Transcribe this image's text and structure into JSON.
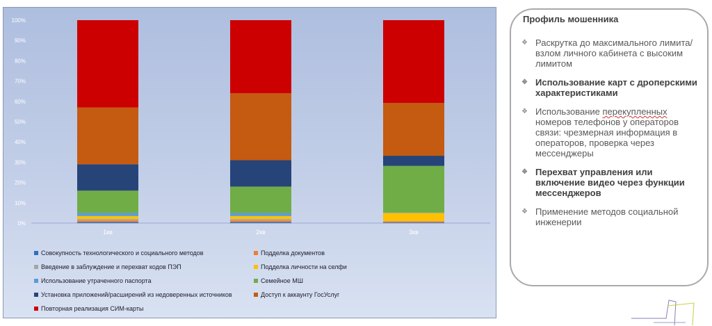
{
  "chart_data": {
    "type": "bar",
    "stacked": true,
    "categories": [
      "1кв",
      "2кв",
      "3кв"
    ],
    "ylim": [
      0,
      100
    ],
    "yticks": [
      "0%",
      "10%",
      "20%",
      "30%",
      "40%",
      "50%",
      "60%",
      "70%",
      "80%",
      "90%",
      "100%"
    ],
    "grid": false,
    "legend_position": "bottom",
    "series": [
      {
        "name": "Совокупность технологического и социального методов",
        "color": "#2e6fc0",
        "values": [
          0.5,
          0.5,
          0.3
        ]
      },
      {
        "name": "Подделка документов",
        "color": "#ee7d31",
        "values": [
          0.8,
          0.8,
          0.5
        ]
      },
      {
        "name": "Введение в заблуждение и перехват кодов ПЭП",
        "color": "#a5a5a5",
        "values": [
          0.7,
          0.7,
          0.2
        ]
      },
      {
        "name": "Подделка личности на селфи",
        "color": "#ffc000",
        "values": [
          1.5,
          1.5,
          4.0
        ]
      },
      {
        "name": "Использование утраченного паспорта",
        "color": "#5b9bd5",
        "values": [
          1.5,
          1.5,
          0.2
        ]
      },
      {
        "name": "Семейное МШ",
        "color": "#70ad47",
        "values": [
          11.0,
          13.0,
          23.0
        ]
      },
      {
        "name": "Установка приложений/расширений из недоверенных источников",
        "color": "#264478",
        "values": [
          13.0,
          13.0,
          5.0
        ]
      },
      {
        "name": "Доступ к аккаунту ГосУслуг",
        "color": "#c55a11",
        "values": [
          28.0,
          33.0,
          26.0
        ]
      },
      {
        "name": "Повторная реализация СИМ-карты",
        "color": "#cc0000",
        "values": [
          43.0,
          36.0,
          40.8
        ]
      }
    ]
  },
  "profile": {
    "title": "Профиль мошенника",
    "items": [
      {
        "text": "Раскрутка до максимального лимита/ взлом личного кабинета с высоким лимитом",
        "bold": false
      },
      {
        "text": "Использование карт с дроперскими характеристиками",
        "bold": true
      },
      {
        "text_parts": [
          "Использование ",
          "перекупленных",
          " номеров телефонов у операторов связи: чрезмерная информация в операторов, проверка через мессенджеры"
        ],
        "bold": false
      },
      {
        "text": "Перехват управления или включение видео через функции мессенджеров",
        "bold": true
      },
      {
        "text": "Применение методов социальной инженерии",
        "bold": false
      }
    ],
    "bullet_glyph": "❖",
    "border_color": "#a9a9a9"
  }
}
